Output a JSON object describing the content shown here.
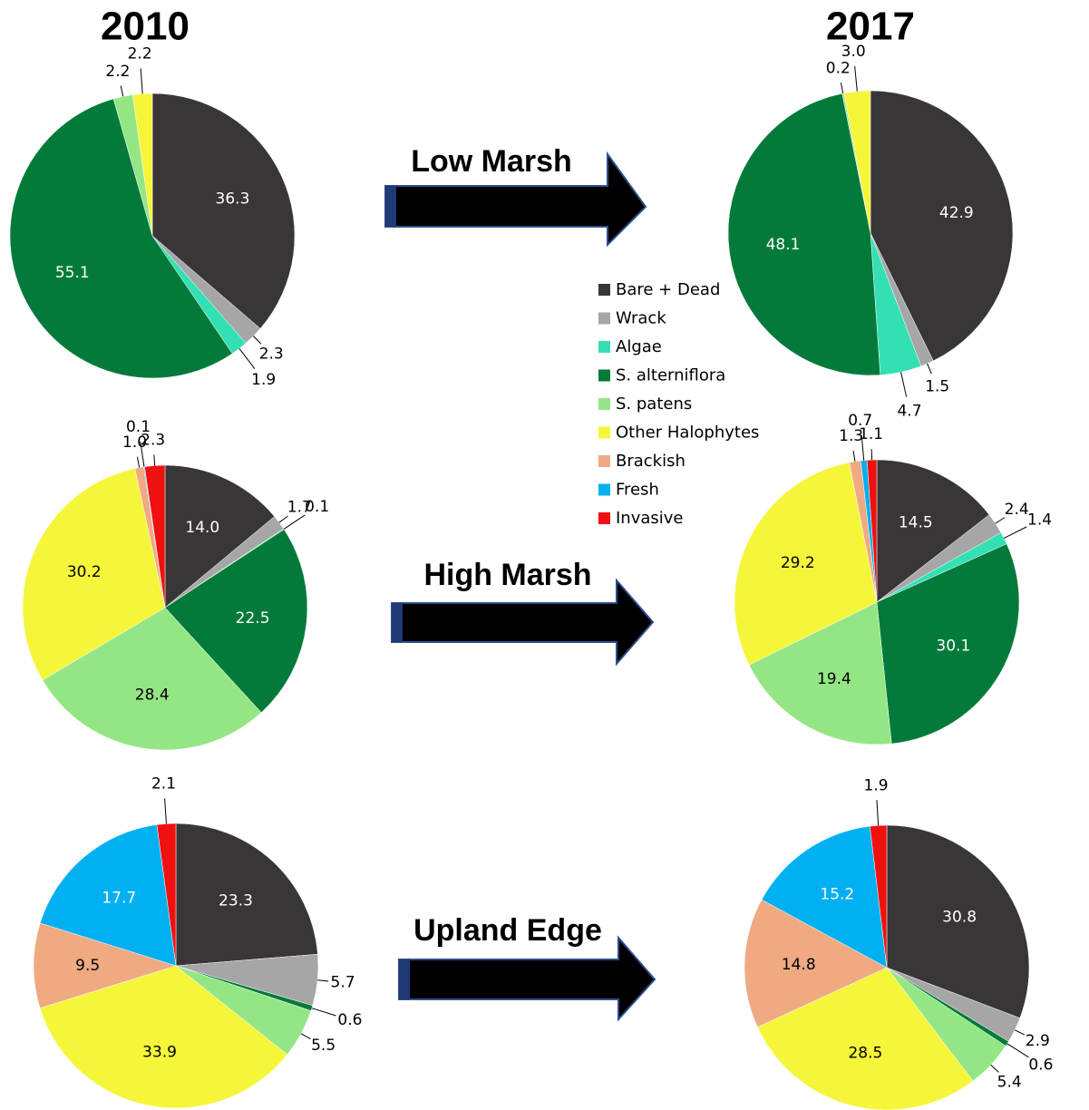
{
  "years": [
    "2010",
    "2017"
  ],
  "rows": [
    "Low Marsh",
    "High Marsh",
    "Upland Edge"
  ],
  "legend": {
    "labels": [
      "Bare + Dead",
      "Wrack",
      "Algae",
      "S. alterniflora",
      "S. patens",
      "Other Halophytes",
      "Brackish",
      "Fresh",
      "Invasive"
    ],
    "colors": [
      "#3a3536",
      "#a6a6a6",
      "#33e0b4",
      "#037a3a",
      "#94e685",
      "#f5f53a",
      "#efaa82",
      "#00b0f0",
      "#f01010"
    ]
  },
  "chart_data": [
    {
      "type": "pie",
      "values": [
        36.3,
        2.3,
        1.9,
        55.1,
        2.2,
        2.2,
        null,
        null,
        null
      ],
      "value_labels": [
        "36.3",
        "2.3",
        "1.9",
        "55.1",
        "2.2",
        "2.2",
        null,
        null,
        null
      ]
    },
    {
      "type": "pie",
      "values": [
        42.9,
        1.5,
        4.7,
        48.1,
        0.2,
        3.0,
        null,
        null,
        null
      ],
      "value_labels": [
        "42.9",
        "1.5",
        "4.7",
        "48.1",
        "0.2",
        "3.0",
        null,
        null,
        null
      ]
    },
    {
      "type": "pie",
      "values": [
        14.0,
        1.7,
        0.1,
        22.5,
        28.4,
        30.2,
        1.0,
        0.1,
        2.3
      ],
      "value_labels": [
        "14.0",
        "1.7",
        "0.1",
        "22.5",
        "28.4",
        "30.2",
        "1.0",
        "0.1",
        "2.3"
      ]
    },
    {
      "type": "pie",
      "values": [
        14.5,
        2.4,
        1.4,
        30.1,
        19.4,
        29.2,
        1.3,
        0.7,
        1.1
      ],
      "value_labels": [
        "14.5",
        "2.4",
        "1.4",
        "30.1",
        "19.4",
        "29.2",
        "1.3",
        "0.7",
        "1.1"
      ]
    },
    {
      "type": "pie",
      "values": [
        23.3,
        5.7,
        null,
        0.6,
        5.5,
        33.9,
        9.5,
        17.7,
        2.1
      ],
      "value_labels": [
        "23.3",
        "5.7",
        null,
        "0.6",
        "5.5",
        "33.9",
        "9.5",
        "17.7",
        "2.1"
      ]
    },
    {
      "type": "pie",
      "values": [
        30.8,
        2.9,
        null,
        0.6,
        5.4,
        28.5,
        14.8,
        15.2,
        1.9
      ],
      "value_labels": [
        "30.8",
        "2.9",
        null,
        "0.6",
        "5.4",
        "28.5",
        "14.8",
        "15.2",
        "1.9"
      ]
    }
  ]
}
